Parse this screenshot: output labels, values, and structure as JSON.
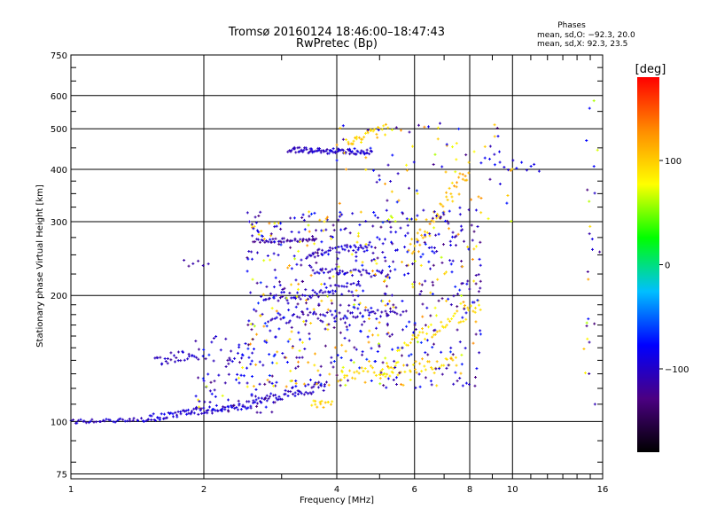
{
  "chart_data": {
    "type": "scatter",
    "title": "Tromsø 20160124 18:46:00–18:47:43",
    "subtitle": "RwPretec (Bp)",
    "xlabel": "Frequency [MHz]",
    "ylabel": "Stationary phase Virtual Height [km]",
    "x_scale": "log",
    "y_scale": "log",
    "xlim": [
      1,
      16
    ],
    "ylim": [
      73,
      750
    ],
    "x_ticks": [
      1,
      2,
      4,
      6,
      8,
      10,
      16
    ],
    "x_tick_labels": [
      "1",
      "2",
      "4",
      "6",
      "8",
      "10",
      "16"
    ],
    "y_ticks": [
      75,
      100,
      200,
      300,
      400,
      500,
      600,
      750
    ],
    "y_tick_labels": [
      "75",
      "100",
      "200",
      "300",
      "400",
      "500",
      "600",
      "750"
    ],
    "grid": true,
    "phase_stats": {
      "title": "Phases",
      "line_o": "mean, sd,O: −92.3, 20.0",
      "line_x": "mean, sd,X:  92.3, 23.5"
    },
    "colorbar": {
      "label": "[deg]",
      "range": [
        -180,
        180
      ],
      "ticks": [
        100,
        0,
        -100
      ],
      "tick_labels": [
        "100",
        "0",
        "−100"
      ],
      "colors": [
        "#000000",
        "#4b0082",
        "#0000ff",
        "#00bfff",
        "#00ff00",
        "#ffff00",
        "#ff8c00",
        "#ff0000"
      ]
    },
    "traces": [
      {
        "x0": 1.0,
        "x1": 1.5,
        "y0": 100,
        "y1": 101,
        "n": 40,
        "phase": -100,
        "spread": 0.01
      },
      {
        "x0": 1.5,
        "x1": 2.6,
        "y0": 102,
        "y1": 110,
        "n": 90,
        "phase": -95,
        "spread": 0.02
      },
      {
        "x0": 2.6,
        "x1": 3.8,
        "y0": 112,
        "y1": 122,
        "n": 60,
        "phase": -100,
        "spread": 0.03
      },
      {
        "x0": 1.55,
        "x1": 1.95,
        "y0": 140,
        "y1": 145,
        "n": 30,
        "phase": -105,
        "spread": 0.03
      },
      {
        "x0": 1.8,
        "x1": 2.05,
        "y0": 240,
        "y1": 238,
        "n": 6,
        "phase": -110,
        "spread": 0.02
      },
      {
        "x0": 3.1,
        "x1": 4.8,
        "y0": 445,
        "y1": 440,
        "n": 90,
        "phase": -100,
        "spread": 0.015
      },
      {
        "x0": 4.2,
        "x1": 5.2,
        "y0": 460,
        "y1": 500,
        "n": 30,
        "phase": 100,
        "spread": 0.03
      },
      {
        "x0": 2.6,
        "x1": 3.6,
        "y0": 270,
        "y1": 272,
        "n": 40,
        "phase": -115,
        "spread": 0.01
      },
      {
        "x0": 3.4,
        "x1": 4.8,
        "y0": 250,
        "y1": 265,
        "n": 40,
        "phase": -100,
        "spread": 0.02
      },
      {
        "x0": 2.7,
        "x1": 4.5,
        "y0": 195,
        "y1": 210,
        "n": 60,
        "phase": -100,
        "spread": 0.03
      },
      {
        "x0": 2.8,
        "x1": 5.5,
        "y0": 175,
        "y1": 185,
        "n": 60,
        "phase": -105,
        "spread": 0.03
      },
      {
        "x0": 3.5,
        "x1": 5.2,
        "y0": 230,
        "y1": 225,
        "n": 40,
        "phase": -100,
        "spread": 0.02
      },
      {
        "x0": 4.0,
        "x1": 5.5,
        "y0": 128,
        "y1": 135,
        "n": 30,
        "phase": 90,
        "spread": 0.03
      },
      {
        "x0": 5.0,
        "x1": 7.5,
        "y0": 130,
        "y1": 140,
        "n": 40,
        "phase": 95,
        "spread": 0.03
      },
      {
        "x0": 5.5,
        "x1": 8.5,
        "y0": 150,
        "y1": 190,
        "n": 50,
        "phase": 90,
        "spread": 0.04
      },
      {
        "x0": 3.5,
        "x1": 3.9,
        "y0": 110,
        "y1": 110,
        "n": 14,
        "phase": 95,
        "spread": 0.02
      },
      {
        "x0": 5.8,
        "x1": 8.0,
        "y0": 250,
        "y1": 400,
        "n": 50,
        "phase": 110,
        "spread": 0.06
      },
      {
        "x0": 8.5,
        "x1": 11.5,
        "y0": 420,
        "y1": 400,
        "n": 14,
        "phase": -90,
        "spread": 0.03
      }
    ],
    "noise_clusters": [
      {
        "x0": 2.5,
        "x1": 8.5,
        "y0": 120,
        "y1": 320,
        "n": 650,
        "phase_mix": [
          -100,
          95
        ],
        "mix": 0.72
      },
      {
        "x0": 1.9,
        "x1": 3.0,
        "y0": 105,
        "y1": 160,
        "n": 90,
        "phase_mix": [
          -100,
          95
        ],
        "mix": 0.95
      },
      {
        "x0": 4.0,
        "x1": 10.0,
        "y0": 300,
        "y1": 520,
        "n": 90,
        "phase_mix": [
          -100,
          95
        ],
        "mix": 0.55
      },
      {
        "x0": 14.5,
        "x1": 15.8,
        "y0": 100,
        "y1": 650,
        "n": 25,
        "phase_mix": [
          -100,
          95
        ],
        "mix": 0.6
      }
    ]
  }
}
